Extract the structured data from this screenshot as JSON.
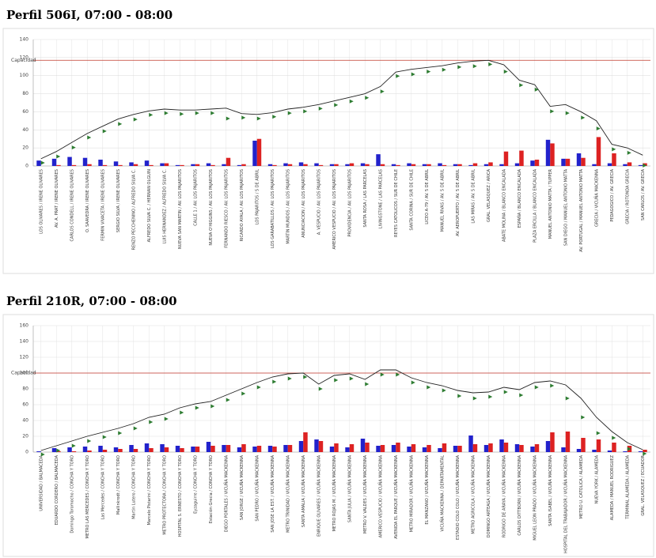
{
  "chart_data": [
    {
      "type": "line",
      "title": "Perfil 506I, 07:00 - 08:00",
      "capacity": {
        "label": "Capacidad",
        "value": 117
      },
      "ylim": [
        0,
        140
      ],
      "yticks": [
        0,
        20,
        40,
        60,
        80,
        100,
        120,
        140
      ],
      "grid": true,
      "categories": [
        "LOS OLIVARES / IRENE OLIVARES",
        "AV. A. PRAT / IRENE OLIVARES",
        "CARLOS CONDELL / IRENE OLIVARES",
        "O. SAAVEDRA / IRENE OLIVARES",
        "FERMIN VIVACETA / IRENE OLIVARES",
        "SERGIO SILVA / IRENE OLIVARES",
        "RENZO PECCHENINO / ALFREDO SILVA C.",
        "ALFREDO SILVA C. / HERNAN OLGUIN",
        "LUIS HERNANDEZ / ALFREDO SILVA C.",
        "NUEVA SAN MARTIN / AV. LOS PAJARITOS",
        "CALLE 1 / AV. LOS PAJARITOS",
        "NUEVA O'HIGGINS / AV. LOS PAJARITOS",
        "FERNANDO RIESCO / AV. LOS PAJARITOS",
        "RICARDO AYALA / AV. LOS PAJARITOS",
        "LOS PAJARITOS / 5 DE ABRIL",
        "LOS GARABATILLOS / AV. LOS PAJARITOS",
        "MARTIN MUNDOS / AV. LOS PAJARITOS",
        "ANUNCIACION / AV. LOS PAJARITOS",
        "A. VESPUCIO / AV. LOS PAJARITOS",
        "AMERICO VESPUCIO / AV. LOS PAJARITOS",
        "PROVIDENCIA / AV. LOS PAJARITOS",
        "SANTA ROSA / LAS PARCELAS",
        "LIVINGSTONE / LAS PARCELAS",
        "REYES CATOLICOS / SUR DE CHILE",
        "SANTA CORINA / SUR DE CHILE",
        "LICEO A-79 / AV. 5 DE ABRIL",
        "MANUEL RIVAS / AV. 5 DE ABRIL",
        "AV. AEROPUERTO / AV. 5 DE ABRIL",
        "LAS MIRAS / AV. 5 DE ABRIL",
        "GRAL. VELASQUEZ / ARICA",
        "ABATE MOLINA / BLANCO ENCALADA",
        "ESPAÑA / BLANCO ENCALADA",
        "PLAZA ERCILLA / BLANCO ENCALADA",
        "MANUEL ANTONIO MATTA / TUPPER",
        "SAN DIEGO / MANUEL ANTONIO MATTA",
        "AV. PORTUGAL / MANUEL ANTONIO MATTA",
        "GRECIA / VICUÑA MACKENNA",
        "PEDAGOGICO / AV. GRECIA",
        "GRECIA / ROTONDA GRECIA",
        "SAN CARLOS / AV. GRECIA"
      ],
      "series": [
        {
          "kind": "line",
          "color": "#222222",
          "values": [
            8,
            16,
            26,
            36,
            44,
            52,
            57,
            61,
            63,
            62,
            62,
            63,
            64,
            58,
            57,
            59,
            63,
            65,
            68,
            72,
            76,
            80,
            88,
            104,
            107,
            109,
            111,
            114,
            116,
            117,
            112,
            95,
            90,
            66,
            68,
            60,
            50,
            24,
            20,
            12
          ]
        },
        {
          "kind": "marker",
          "color": "#2e7d32",
          "values": [
            7,
            14,
            24,
            35,
            42,
            50,
            55,
            60,
            62,
            61,
            62,
            62,
            56,
            57,
            56,
            58,
            62,
            64,
            67,
            71,
            75,
            79,
            86,
            103,
            105,
            108,
            110,
            113,
            114,
            116,
            108,
            93,
            88,
            64,
            62,
            57,
            45,
            22,
            18,
            4
          ]
        },
        {
          "kind": "bar",
          "color": "#2222cc",
          "values": [
            6,
            8,
            10,
            9,
            7,
            5,
            4,
            6,
            3,
            1,
            2,
            3,
            2,
            1,
            28,
            2,
            3,
            4,
            3,
            2,
            2,
            3,
            13,
            2,
            3,
            2,
            3,
            2,
            1,
            2,
            2,
            3,
            6,
            29,
            8,
            14,
            2,
            3,
            2,
            1
          ]
        },
        {
          "kind": "bar",
          "color": "#dd2222",
          "values": [
            0,
            1,
            1,
            2,
            1,
            1,
            2,
            1,
            3,
            1,
            2,
            1,
            9,
            2,
            30,
            1,
            2,
            2,
            1,
            2,
            3,
            2,
            2,
            1,
            2,
            2,
            1,
            2,
            3,
            4,
            16,
            17,
            7,
            25,
            8,
            9,
            32,
            14,
            4,
            3
          ]
        }
      ]
    },
    {
      "type": "line",
      "title": "Perfil 210R, 07:00 - 08:00",
      "capacity": {
        "label": "Capacidad",
        "value": 100
      },
      "ylim": [
        0,
        160
      ],
      "yticks": [
        0,
        20,
        40,
        60,
        80,
        100,
        120,
        140,
        160
      ],
      "grid": true,
      "categories": [
        "UNIVERSIDAD / BALMACEDA",
        "EDUARDO CORDERO / BALMACEDA",
        "Domingo Toromocho / CONCHA Y TORO",
        "METRO LAS MERCEDES / CONCHA Y TORO",
        "Las Mercedes / CONCHA Y TORO",
        "Mallinkrodt / CONCHA Y TORO",
        "Martin Lutero / CONCHA Y TORO",
        "Marcelo Pistarini / CONCHA Y TORO",
        "METRO PROTECTORA / CONCHA Y TORO",
        "HOSPITAL S. ERNESTO / CONCHA Y TORO",
        "Eyzaguirre / CONCHA Y TORO",
        "Estación Grecia / CONCHA Y TORO",
        "DIEGO PORTALES / VICUÑA MACKENNA",
        "SAN JORGE / VICUÑA MACKENNA",
        "SAN PEDRO / VICUÑA MACKENNA",
        "SAN JOSE LA EST. / VICUÑA MACKENNA",
        "METRO TRINIDAD / VICUÑA MACKENNA",
        "SANTA AMALIA / VICUÑA MACKENNA",
        "ENRIQUE OLIVARES / VICUÑA MACKENNA",
        "METRO ROJAS M. / VICUÑA MACKENNA",
        "SANTA JULIA / VICUÑA MACKENNA",
        "METRO V. VALDES / VICUÑA MACKENNA",
        "AMERICO VESPUCIO / VICUÑA MACKENNA",
        "AVENIDA EL PARQUE / VICUÑA MACKENNA",
        "METRO MIRADOR / VICUÑA MACKENNA",
        "EL MANZANO / VICUÑA MACKENNA",
        "VICUÑA MACKENNA / DEPARTAMENTAL",
        "ESTADIO COLO COLO / VICUÑA MACKENNA",
        "METRO AGRICOLA / VICUÑA MACKENNA",
        "DOMINGO ARTEAGA / VICUÑA MACKENNA",
        "RODRIGO DE ARAYA / VICUÑA MACKENNA",
        "CARLOS DITTBORN / VICUÑA MACKENNA",
        "MIGUEL LEON PRADO / VICUÑA MACKENNA",
        "SANTA ISABEL / VICUÑA MACKENNA",
        "HOSPITAL DEL TRABAJADOR / VICUÑA MACKENNA",
        "METRO U. CATOLICA / ALAMEDA",
        "NUEVA YORK / ALAMEDA",
        "ALAMEDA / MANUEL RODRIGUEZ",
        "TERMINAL ALAMEDA / ALAMEDA",
        "GRAL. VELASQUEZ / ECUADOR"
      ],
      "series": [
        {
          "kind": "line",
          "color": "#222222",
          "values": [
            2,
            8,
            14,
            20,
            25,
            30,
            36,
            44,
            48,
            56,
            61,
            64,
            72,
            80,
            88,
            95,
            99,
            100,
            86,
            97,
            99,
            92,
            104,
            104,
            94,
            88,
            84,
            78,
            75,
            76,
            82,
            79,
            88,
            90,
            85,
            68,
            44,
            26,
            12,
            3
          ]
        },
        {
          "kind": "marker",
          "color": "#2e7d32",
          "values": [
            1,
            6,
            12,
            18,
            23,
            28,
            34,
            42,
            46,
            54,
            60,
            62,
            70,
            78,
            86,
            93,
            97,
            99,
            84,
            95,
            97,
            90,
            102,
            102,
            92,
            86,
            82,
            75,
            72,
            74,
            80,
            76,
            86,
            88,
            72,
            48,
            28,
            22,
            8,
            2
          ]
        },
        {
          "kind": "bar",
          "color": "#2222cc",
          "values": [
            1,
            5,
            6,
            7,
            8,
            6,
            9,
            11,
            10,
            8,
            7,
            13,
            9,
            6,
            7,
            8,
            9,
            14,
            16,
            7,
            6,
            17,
            8,
            9,
            7,
            6,
            5,
            8,
            21,
            9,
            16,
            10,
            7,
            14,
            6,
            4,
            3,
            2,
            1,
            1
          ]
        },
        {
          "kind": "bar",
          "color": "#dd2222",
          "values": [
            0,
            1,
            1,
            2,
            3,
            4,
            4,
            5,
            6,
            5,
            7,
            8,
            9,
            10,
            8,
            7,
            9,
            25,
            14,
            11,
            10,
            12,
            9,
            12,
            10,
            9,
            11,
            8,
            10,
            11,
            12,
            9,
            10,
            25,
            26,
            18,
            16,
            12,
            8,
            3
          ]
        }
      ]
    }
  ]
}
